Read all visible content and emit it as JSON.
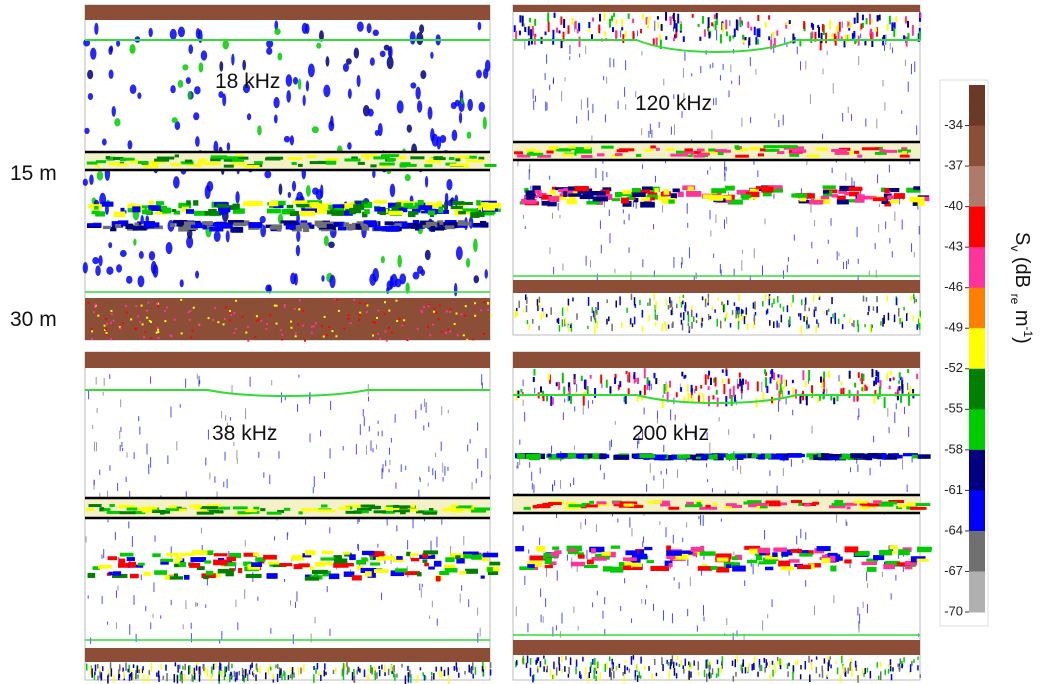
{
  "panels": [
    {
      "label": "18 kHz"
    },
    {
      "label": "120 kHz"
    },
    {
      "label": "38 kHz"
    },
    {
      "label": "200 kHz"
    }
  ],
  "depth_labels": [
    "15 m",
    "30 m"
  ],
  "colorbar": {
    "ticks": [
      -34,
      -37,
      -40,
      -43,
      -46,
      -49,
      -52,
      -55,
      -58,
      -61,
      -64,
      -67,
      -70
    ],
    "clim": [
      -31,
      -70
    ],
    "colors": [
      "#6b3a26",
      "#8c4e36",
      "#b07a6a",
      "#ff0000",
      "#ff3399",
      "#ff8000",
      "#ffff00",
      "#008000",
      "#00cc00",
      "#000080",
      "#0000ff",
      "#707070",
      "#b0b0b0"
    ],
    "label": {
      "symbol": "S",
      "sub": "v",
      "unit": " (dB ",
      "unit_sub": "re",
      "unit_tail": " m",
      "sup": "-1",
      "close": ")"
    }
  }
}
